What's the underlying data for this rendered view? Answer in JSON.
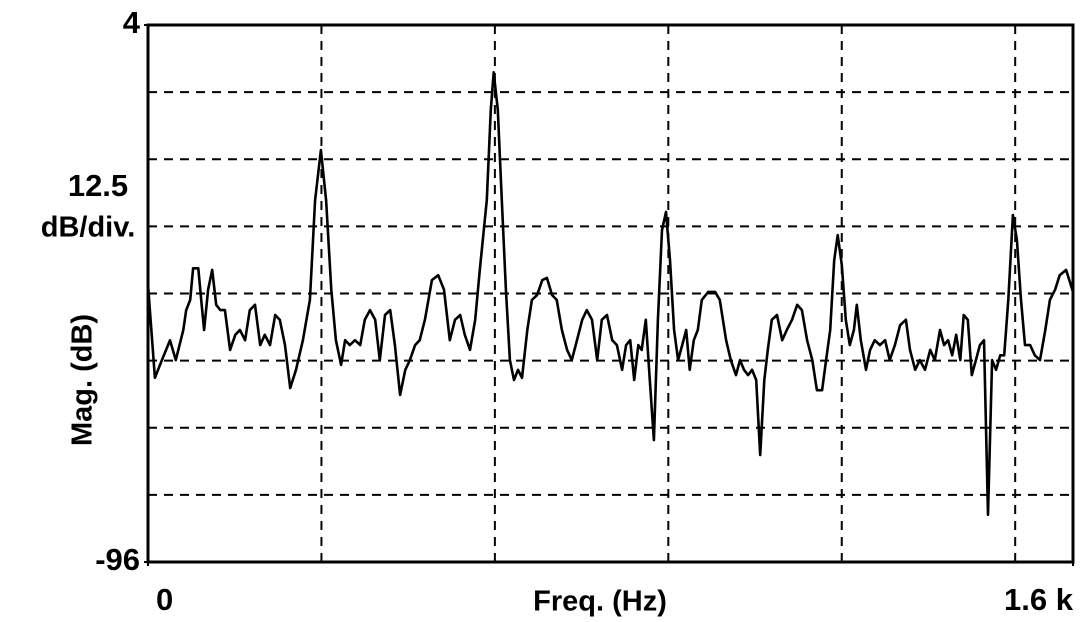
{
  "chart_data": {
    "type": "line",
    "x_label": "Freq. (Hz)",
    "y_label": "Mag. (dB)",
    "annotations": [
      "12.5",
      "dB/div."
    ],
    "xlim": [
      0,
      1600
    ],
    "ylim": [
      -96,
      4
    ],
    "xticks": [
      {
        "value": 0,
        "label": "0"
      },
      {
        "value": 1600,
        "label": "1.6 k"
      }
    ],
    "yticks": [
      -96,
      4
    ],
    "xgrid_lines": [
      300,
      600,
      900,
      1200,
      1500
    ],
    "ygrid_lines": [
      -83.5,
      -71,
      -58.5,
      -46,
      -33.5,
      -21,
      -8.5
    ],
    "grid": true,
    "grid_style": "dashed",
    "color": "#000000",
    "x": [
      0,
      12,
      24,
      38,
      48,
      61,
      66,
      73,
      78,
      87,
      92,
      97,
      104,
      111,
      118,
      125,
      133,
      142,
      151,
      159,
      168,
      176,
      185,
      194,
      202,
      211,
      220,
      228,
      237,
      246,
      256,
      268,
      280,
      289,
      299,
      308,
      317,
      325,
      334,
      341,
      349,
      358,
      367,
      375,
      384,
      393,
      401,
      410,
      419,
      427,
      436,
      445,
      453,
      462,
      470,
      479,
      491,
      502,
      512,
      522,
      531,
      540,
      548,
      557,
      566,
      574,
      586,
      593,
      598,
      605,
      612,
      619,
      626,
      633,
      640,
      647,
      656,
      664,
      673,
      682,
      690,
      699,
      707,
      716,
      725,
      733,
      742,
      751,
      759,
      768,
      777,
      785,
      794,
      803,
      811,
      820,
      827,
      834,
      841,
      848,
      854,
      861,
      868,
      875,
      882,
      889,
      896,
      903,
      910,
      917,
      924,
      931,
      937,
      944,
      951,
      958,
      969,
      981,
      989,
      1000,
      1008,
      1017,
      1024,
      1031,
      1038,
      1045,
      1052,
      1059,
      1066,
      1072,
      1079,
      1088,
      1097,
      1105,
      1114,
      1123,
      1131,
      1140,
      1149,
      1157,
      1166,
      1173,
      1180,
      1187,
      1193,
      1200,
      1207,
      1214,
      1221,
      1226,
      1233,
      1242,
      1249,
      1257,
      1266,
      1275,
      1283,
      1292,
      1301,
      1311,
      1318,
      1327,
      1335,
      1344,
      1353,
      1361,
      1370,
      1377,
      1384,
      1391,
      1398,
      1405,
      1411,
      1418,
      1425,
      1432,
      1439,
      1446,
      1453,
      1460,
      1467,
      1474,
      1481,
      1488,
      1496,
      1503,
      1510,
      1517,
      1526,
      1534,
      1543,
      1552,
      1560,
      1569,
      1577,
      1588,
      1600
    ],
    "values": [
      -44.4,
      -61.7,
      -58.4,
      -54.7,
      -58.4,
      -52.8,
      -49.1,
      -47.2,
      -41.3,
      -41.3,
      -47.2,
      -52.8,
      -45.3,
      -41.6,
      -48.1,
      -49.1,
      -49.1,
      -56.5,
      -53.7,
      -52.8,
      -54.7,
      -49.1,
      -48.1,
      -55.6,
      -53.7,
      -55.6,
      -50.0,
      -50.9,
      -55.6,
      -63.6,
      -60.2,
      -54.7,
      -47.2,
      -28.6,
      -19.3,
      -28.6,
      -45.3,
      -54.7,
      -59.3,
      -54.7,
      -55.6,
      -54.7,
      -55.6,
      -50.9,
      -49.1,
      -50.9,
      -58.4,
      -50.0,
      -49.1,
      -55.6,
      -64.9,
      -60.2,
      -58.4,
      -55.6,
      -54.7,
      -50.9,
      -43.5,
      -42.6,
      -45.3,
      -54.7,
      -50.9,
      -50.0,
      -53.7,
      -56.5,
      -50.9,
      -41.6,
      -28.6,
      -11.8,
      -4.8,
      -11.8,
      -28.6,
      -45.3,
      -58.4,
      -62.1,
      -60.2,
      -61.7,
      -52.8,
      -47.2,
      -46.3,
      -43.5,
      -43.1,
      -46.3,
      -47.2,
      -52.8,
      -56.5,
      -58.4,
      -54.7,
      -50.9,
      -49.1,
      -50.9,
      -58.4,
      -50.9,
      -50.0,
      -54.7,
      -55.6,
      -60.2,
      -55.6,
      -54.7,
      -62.1,
      -55.6,
      -56.5,
      -50.9,
      -62.1,
      -73.3,
      -50.9,
      -34.2,
      -30.8,
      -39.8,
      -52.8,
      -58.4,
      -55.6,
      -52.8,
      -60.2,
      -54.7,
      -52.8,
      -47.2,
      -45.7,
      -45.7,
      -47.2,
      -54.7,
      -58.4,
      -61.2,
      -58.4,
      -60.2,
      -61.2,
      -60.2,
      -62.1,
      -76.1,
      -62.1,
      -56.5,
      -50.9,
      -50.0,
      -54.7,
      -52.8,
      -50.9,
      -48.1,
      -49.1,
      -54.7,
      -58.4,
      -64.0,
      -64.0,
      -58.4,
      -52.8,
      -39.8,
      -35.1,
      -40.7,
      -50.9,
      -55.6,
      -52.8,
      -48.1,
      -54.7,
      -60.2,
      -56.5,
      -54.7,
      -55.6,
      -54.7,
      -58.4,
      -55.6,
      -51.9,
      -50.9,
      -56.5,
      -60.2,
      -58.4,
      -60.2,
      -56.5,
      -58.4,
      -52.8,
      -55.6,
      -54.7,
      -57.5,
      -53.7,
      -58.4,
      -50.0,
      -50.9,
      -61.2,
      -58.4,
      -55.6,
      -54.7,
      -87.2,
      -58.4,
      -60.2,
      -57.5,
      -57.5,
      -47.2,
      -31.4,
      -36.0,
      -47.2,
      -55.6,
      -55.6,
      -57.5,
      -58.4,
      -52.8,
      -47.2,
      -45.3,
      -42.6,
      -41.6,
      -45.7
    ]
  }
}
